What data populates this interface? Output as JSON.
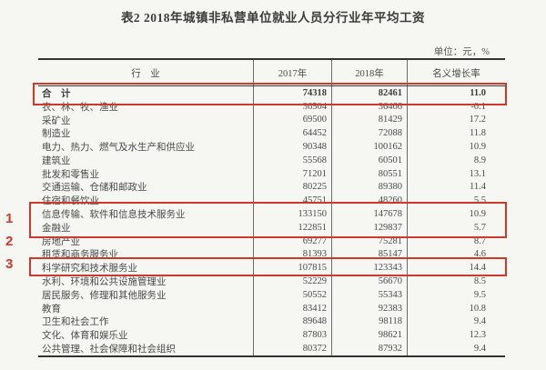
{
  "title": "表2  2018年城镇非私营单位就业人员分行业年平均工资",
  "unit_note": "单位：元，%",
  "table": {
    "headers": [
      "行　业",
      "2017年",
      "2018年",
      "名义增长率"
    ],
    "rows": [
      {
        "industry": "合　计",
        "y2017": "74318",
        "y2018": "82461",
        "growth": "11.0"
      },
      {
        "industry": "农、林、牧、渔业",
        "y2017": "36504",
        "y2018": "36466",
        "growth": "-0.1"
      },
      {
        "industry": "采矿业",
        "y2017": "69500",
        "y2018": "81429",
        "growth": "17.2"
      },
      {
        "industry": "制造业",
        "y2017": "64452",
        "y2018": "72088",
        "growth": "11.8"
      },
      {
        "industry": "电力、热力、燃气及水生产和供应业",
        "y2017": "90348",
        "y2018": "100162",
        "growth": "10.9"
      },
      {
        "industry": "建筑业",
        "y2017": "55568",
        "y2018": "60501",
        "growth": "8.9"
      },
      {
        "industry": "批发和零售业",
        "y2017": "71201",
        "y2018": "80551",
        "growth": "13.1"
      },
      {
        "industry": "交通运输、仓储和邮政业",
        "y2017": "80225",
        "y2018": "89380",
        "growth": "11.4"
      },
      {
        "industry": "住宿和餐饮业",
        "y2017": "45751",
        "y2018": "48260",
        "growth": "5.5"
      },
      {
        "industry": "信息传输、软件和信息技术服务业",
        "y2017": "133150",
        "y2018": "147678",
        "growth": "10.9"
      },
      {
        "industry": "金融业",
        "y2017": "122851",
        "y2018": "129837",
        "growth": "5.7"
      },
      {
        "industry": "房地产业",
        "y2017": "69277",
        "y2018": "75281",
        "growth": "8.7"
      },
      {
        "industry": "租赁和商务服务业",
        "y2017": "81393",
        "y2018": "85147",
        "growth": "4.6"
      },
      {
        "industry": "科学研究和技术服务业",
        "y2017": "107815",
        "y2018": "123343",
        "growth": "14.4"
      },
      {
        "industry": "水利、环境和公共设施管理业",
        "y2017": "52229",
        "y2018": "56670",
        "growth": "8.5"
      },
      {
        "industry": "居民服务、修理和其他服务业",
        "y2017": "50552",
        "y2018": "55343",
        "growth": "9.5"
      },
      {
        "industry": "教育",
        "y2017": "83412",
        "y2018": "92383",
        "growth": "10.8"
      },
      {
        "industry": "卫生和社会工作",
        "y2017": "89648",
        "y2018": "98118",
        "growth": "9.4"
      },
      {
        "industry": "文化、体育和娱乐业",
        "y2017": "87803",
        "y2018": "98621",
        "growth": "12.3"
      },
      {
        "industry": "公共管理、社会保障和社会组织",
        "y2017": "80372",
        "y2018": "87932",
        "growth": "9.4"
      }
    ]
  },
  "annotations": {
    "markers": [
      "1",
      "2",
      "3"
    ],
    "highlight_color": "#cf382b",
    "highlighted_rows": [
      "合计",
      "信息传输、软件和信息技术服务业 / 金融业",
      "科学研究和技术服务业"
    ]
  }
}
